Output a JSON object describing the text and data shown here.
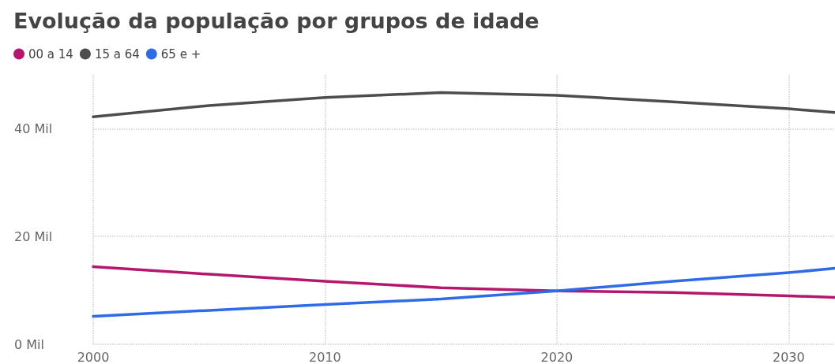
{
  "chart_data": {
    "type": "line",
    "title": "Evolução da população por grupos de idade",
    "x": [
      2000,
      2005,
      2010,
      2015,
      2020,
      2025,
      2030,
      2032
    ],
    "series": [
      {
        "name": "00 a 14",
        "color": "#b5176e",
        "values": [
          14.4,
          13.0,
          11.7,
          10.5,
          9.9,
          9.6,
          9.0,
          8.7
        ]
      },
      {
        "name": "15 a 64",
        "color": "#4d4d4d",
        "values": [
          42.2,
          44.3,
          45.8,
          46.7,
          46.2,
          45.0,
          43.7,
          43.0
        ]
      },
      {
        "name": "65 e +",
        "color": "#2e6be6",
        "values": [
          5.2,
          6.3,
          7.4,
          8.4,
          9.9,
          11.7,
          13.3,
          14.1
        ]
      }
    ],
    "xlim": [
      2000,
      2032
    ],
    "xticks": [
      2000,
      2010,
      2020,
      2030
    ],
    "ylim": [
      0,
      50
    ],
    "yticks": [
      {
        "value": 0,
        "label": "0 Mil"
      },
      {
        "value": 20,
        "label": "20 Mil"
      },
      {
        "value": 40,
        "label": "40 Mil"
      }
    ],
    "grid": true,
    "legend": "top left",
    "marker": "none",
    "line_style": "solid"
  }
}
